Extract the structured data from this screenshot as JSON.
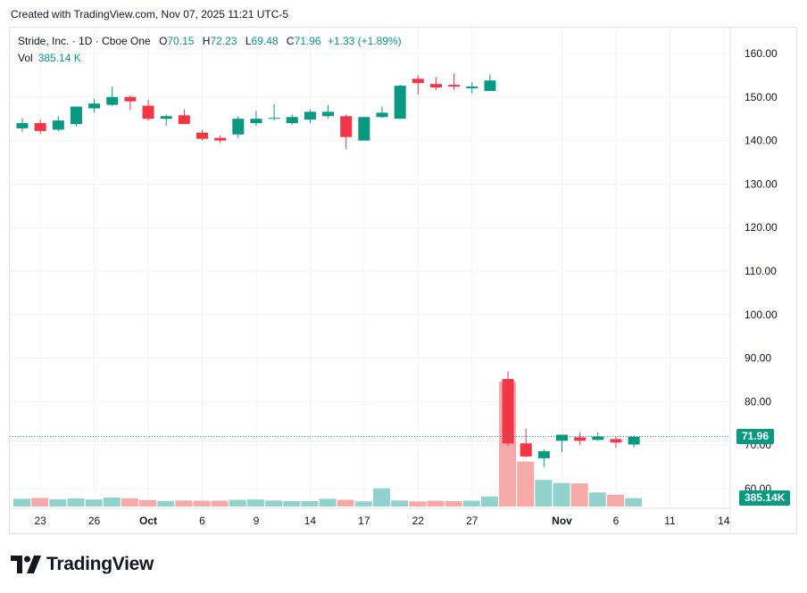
{
  "header": {
    "created_text": "Created with TradingView.com, Nov 07, 2025 11:21 UTC-5"
  },
  "legend": {
    "symbol": "Stride, Inc. · 1D · Cboe One",
    "o_label": "O",
    "o_value": "70.15",
    "h_label": "H",
    "h_value": "72.23",
    "l_label": "L",
    "l_value": "69.48",
    "c_label": "C",
    "c_value": "71.96",
    "change": "+1.33 (+1.89%)",
    "vol_label": "Vol",
    "vol_value": "385.14 K"
  },
  "price_tag": "71.96",
  "volume_tag": "385.14K",
  "logo_text": "TradingView",
  "colors": {
    "up": "#089981",
    "down": "#f23645",
    "up_vol": "#92d2cc",
    "down_vol": "#f7a9a7",
    "grid": "#f0f3fa",
    "text": "#131722"
  },
  "chart_data": {
    "type": "candlestick",
    "title": "Stride, Inc. · 1D · Cboe One",
    "y_ticks": [
      "160.00",
      "150.00",
      "140.00",
      "130.00",
      "120.00",
      "110.00",
      "100.00",
      "90.00",
      "80.00",
      "70.00",
      "60.00"
    ],
    "ylim": [
      56.5,
      164
    ],
    "x_ticks": [
      {
        "label": "23",
        "index": 1
      },
      {
        "label": "26",
        "index": 4
      },
      {
        "label": "Oct",
        "index": 7
      },
      {
        "label": "6",
        "index": 10
      },
      {
        "label": "9",
        "index": 13
      },
      {
        "label": "14",
        "index": 16
      },
      {
        "label": "17",
        "index": 19
      },
      {
        "label": "22",
        "index": 22
      },
      {
        "label": "27",
        "index": 25
      },
      {
        "label": "Nov",
        "index": 30
      },
      {
        "label": "6",
        "index": 33
      },
      {
        "label": "11",
        "index": 36
      },
      {
        "label": "14",
        "index": 39
      }
    ],
    "candles": [
      {
        "o": 142.8,
        "h": 145.1,
        "l": 142.0,
        "c": 144.0,
        "v": 0.36
      },
      {
        "o": 144.0,
        "h": 144.8,
        "l": 141.5,
        "c": 142.2,
        "v": 0.4
      },
      {
        "o": 142.5,
        "h": 145.6,
        "l": 142.2,
        "c": 144.6,
        "v": 0.34
      },
      {
        "o": 143.8,
        "h": 147.8,
        "l": 143.2,
        "c": 147.8,
        "v": 0.38
      },
      {
        "o": 147.4,
        "h": 149.6,
        "l": 146.4,
        "c": 148.5,
        "v": 0.33
      },
      {
        "o": 148.2,
        "h": 152.4,
        "l": 148.0,
        "c": 150.0,
        "v": 0.42
      },
      {
        "o": 150.0,
        "h": 150.4,
        "l": 147.0,
        "c": 149.0,
        "v": 0.38
      },
      {
        "o": 148.0,
        "h": 149.4,
        "l": 144.6,
        "c": 145.0,
        "v": 0.3
      },
      {
        "o": 145.0,
        "h": 146.0,
        "l": 143.4,
        "c": 145.6,
        "v": 0.26
      },
      {
        "o": 145.8,
        "h": 147.2,
        "l": 143.8,
        "c": 143.8,
        "v": 0.28
      },
      {
        "o": 141.8,
        "h": 142.4,
        "l": 140.0,
        "c": 140.4,
        "v": 0.27
      },
      {
        "o": 140.6,
        "h": 141.2,
        "l": 139.4,
        "c": 140.0,
        "v": 0.27
      },
      {
        "o": 141.4,
        "h": 145.6,
        "l": 140.6,
        "c": 145.0,
        "v": 0.31
      },
      {
        "o": 144.0,
        "h": 146.8,
        "l": 143.4,
        "c": 145.0,
        "v": 0.33
      },
      {
        "o": 145.0,
        "h": 148.4,
        "l": 144.6,
        "c": 145.2,
        "v": 0.28
      },
      {
        "o": 144.0,
        "h": 146.0,
        "l": 143.6,
        "c": 145.4,
        "v": 0.25
      },
      {
        "o": 144.8,
        "h": 147.2,
        "l": 144.0,
        "c": 146.6,
        "v": 0.25
      },
      {
        "o": 145.6,
        "h": 148.2,
        "l": 145.0,
        "c": 146.6,
        "v": 0.36
      },
      {
        "o": 145.6,
        "h": 146.0,
        "l": 138.0,
        "c": 140.8,
        "v": 0.31
      },
      {
        "o": 140.0,
        "h": 145.4,
        "l": 140.0,
        "c": 145.4,
        "v": 0.24
      },
      {
        "o": 145.4,
        "h": 147.8,
        "l": 145.2,
        "c": 146.4,
        "v": 0.85
      },
      {
        "o": 145.0,
        "h": 152.8,
        "l": 145.0,
        "c": 152.6,
        "v": 0.28
      },
      {
        "o": 154.2,
        "h": 155.0,
        "l": 150.6,
        "c": 153.2,
        "v": 0.24
      },
      {
        "o": 153.0,
        "h": 154.6,
        "l": 151.6,
        "c": 152.2,
        "v": 0.27
      },
      {
        "o": 152.8,
        "h": 155.4,
        "l": 151.6,
        "c": 152.4,
        "v": 0.25
      },
      {
        "o": 152.0,
        "h": 153.4,
        "l": 150.8,
        "c": 152.4,
        "v": 0.27
      },
      {
        "o": 151.4,
        "h": 155.2,
        "l": 151.4,
        "c": 153.8,
        "v": 0.47
      },
      {
        "o": 85.2,
        "h": 87.0,
        "l": 69.8,
        "c": 70.4,
        "v": 5.83
      },
      {
        "o": 70.4,
        "h": 73.8,
        "l": 67.2,
        "c": 67.4,
        "v": 2.1
      },
      {
        "o": 67.0,
        "h": 69.0,
        "l": 65.0,
        "c": 68.6,
        "v": 1.24
      },
      {
        "o": 71.0,
        "h": 72.4,
        "l": 68.4,
        "c": 72.4,
        "v": 1.1
      },
      {
        "o": 71.8,
        "h": 73.0,
        "l": 70.0,
        "c": 71.0,
        "v": 1.08
      },
      {
        "o": 71.2,
        "h": 73.0,
        "l": 71.0,
        "c": 72.0,
        "v": 0.66
      },
      {
        "o": 71.4,
        "h": 72.0,
        "l": 69.4,
        "c": 70.6,
        "v": 0.55
      },
      {
        "o": 70.15,
        "h": 72.23,
        "l": 69.48,
        "c": 71.96,
        "v": 0.39
      }
    ]
  }
}
